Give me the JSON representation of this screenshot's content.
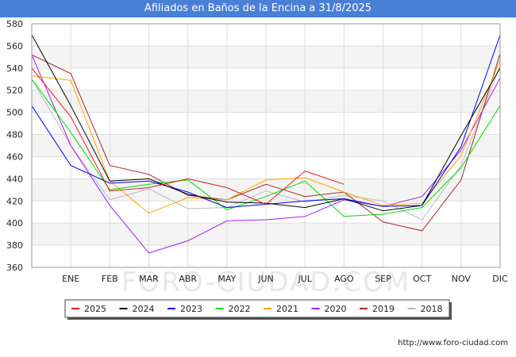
{
  "title": "Afiliados en Baños de la Encina a 31/8/2025",
  "source": "http://www.foro-ciudad.com",
  "watermark": "FORO-CIUDAD.COM",
  "chart_data": {
    "type": "line",
    "title": "Afiliados en Baños de la Encina a 31/8/2025",
    "categories": [
      "",
      "ENE",
      "FEB",
      "MAR",
      "ABR",
      "MAY",
      "JUN",
      "JUL",
      "AGO",
      "SEP",
      "OCT",
      "NOV",
      "DIC"
    ],
    "ylim": [
      360,
      580
    ],
    "yticks": [
      360,
      380,
      400,
      420,
      440,
      460,
      480,
      500,
      520,
      540,
      560,
      580
    ],
    "grid": true,
    "legend_position": "bottom",
    "series": [
      {
        "name": "2025",
        "color": "#e41a1c",
        "values": [
          540,
          496,
          429,
          432,
          440,
          432,
          417,
          447,
          435,
          null,
          null,
          null,
          null
        ]
      },
      {
        "name": "2024",
        "color": "#000000",
        "values": [
          570,
          506,
          438,
          440,
          426,
          419,
          418,
          414,
          422,
          411,
          416,
          479,
          540
        ]
      },
      {
        "name": "2023",
        "color": "#0000ff",
        "values": [
          506,
          452,
          436,
          438,
          428,
          414,
          417,
          420,
          422,
          415,
          416,
          469,
          570
        ]
      },
      {
        "name": "2022",
        "color": "#00dd00",
        "values": [
          530,
          482,
          430,
          435,
          439,
          412,
          424,
          438,
          406,
          408,
          414,
          450,
          506
        ]
      },
      {
        "name": "2021",
        "color": "#ffa500",
        "values": [
          533,
          529,
          438,
          409,
          423,
          421,
          439,
          441,
          428,
          416,
          418,
          461,
          547
        ]
      },
      {
        "name": "2020",
        "color": "#a020f0",
        "values": [
          552,
          470,
          416,
          373,
          384,
          402,
          403,
          406,
          421,
          415,
          424,
          466,
          531
        ]
      },
      {
        "name": "2019",
        "color": "#a52a2a",
        "values": [
          552,
          535,
          452,
          444,
          425,
          421,
          435,
          424,
          428,
          401,
          393,
          439,
          553
        ]
      },
      {
        "name": "2018",
        "color": "#bbbbbb",
        "values": [
          530,
          470,
          421,
          431,
          413,
          414,
          429,
          419,
          425,
          420,
          403,
          452,
          542
        ]
      }
    ]
  }
}
